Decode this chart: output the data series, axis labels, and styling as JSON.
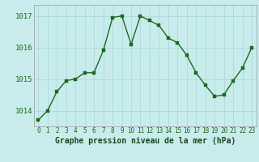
{
  "x": [
    0,
    1,
    2,
    3,
    4,
    5,
    6,
    7,
    8,
    9,
    10,
    11,
    12,
    13,
    14,
    15,
    16,
    17,
    18,
    19,
    20,
    21,
    22,
    23
  ],
  "y": [
    1013.7,
    1014.0,
    1014.6,
    1014.95,
    1015.0,
    1015.2,
    1015.2,
    1015.9,
    1016.95,
    1017.0,
    1016.1,
    1017.0,
    1016.85,
    1016.7,
    1016.3,
    1016.15,
    1015.75,
    1015.2,
    1014.8,
    1014.45,
    1014.5,
    1014.95,
    1015.35,
    1016.0
  ],
  "xlim": [
    -0.5,
    23.5
  ],
  "ylim": [
    1013.5,
    1017.35
  ],
  "yticks": [
    1014,
    1015,
    1016,
    1017
  ],
  "xticks": [
    0,
    1,
    2,
    3,
    4,
    5,
    6,
    7,
    8,
    9,
    10,
    11,
    12,
    13,
    14,
    15,
    16,
    17,
    18,
    19,
    20,
    21,
    22,
    23
  ],
  "xlabel": "Graphe pression niveau de la mer (hPa)",
  "line_color": "#1a6b1a",
  "marker_color": "#1a6b1a",
  "bg_color": "#c8ecec",
  "grid_color": "#b0d8d8",
  "xlabel_fontsize": 7,
  "ytick_fontsize": 6.5,
  "xtick_fontsize": 5.5,
  "marker_size": 2.5,
  "line_width": 1.0
}
